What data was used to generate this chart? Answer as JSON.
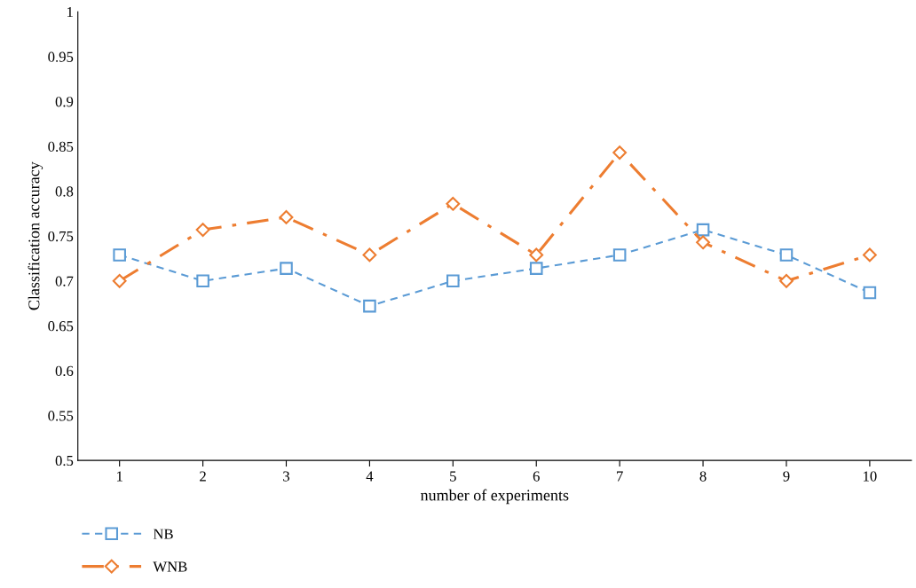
{
  "chart_data": {
    "type": "line",
    "xlabel": "number of experiments",
    "ylabel": "Classification accuracy",
    "categories": [
      "1",
      "2",
      "3",
      "4",
      "5",
      "6",
      "7",
      "8",
      "9",
      "10"
    ],
    "series": [
      {
        "name": "NB",
        "color": "#5b9bd5",
        "marker": "square",
        "line_style": "dashed",
        "values": [
          0.729,
          0.7,
          0.714,
          0.672,
          0.7,
          0.714,
          0.729,
          0.757,
          0.729,
          0.687
        ]
      },
      {
        "name": "WNB",
        "color": "#ed7d31",
        "marker": "diamond",
        "line_style": "dashdot",
        "values": [
          0.7,
          0.757,
          0.771,
          0.729,
          0.786,
          0.729,
          0.843,
          0.743,
          0.7,
          0.729
        ]
      }
    ],
    "ylim": [
      0.5,
      1
    ],
    "yticks": [
      0.5,
      0.55,
      0.6,
      0.65,
      0.7,
      0.75,
      0.8,
      0.85,
      0.9,
      0.95,
      1
    ],
    "grid": false,
    "legend": "bottom left"
  }
}
